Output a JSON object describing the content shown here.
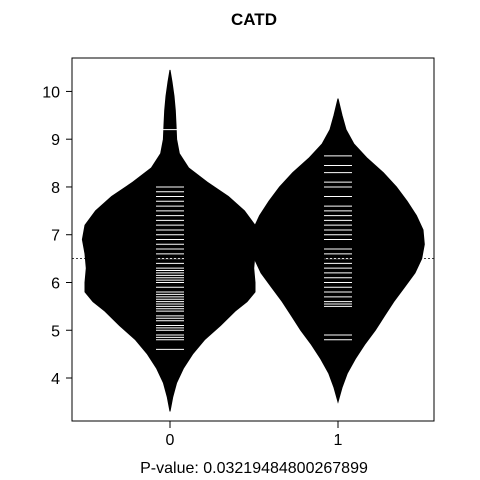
{
  "chart_data": {
    "type": "beanplot",
    "title": "CATD",
    "xlabel_prefix": "P-value: ",
    "xlabel_value": "0.03219484800267899",
    "categories": [
      "0",
      "1"
    ],
    "ylim": [
      3.1,
      10.7
    ],
    "yticks": [
      4,
      5,
      6,
      7,
      8,
      9,
      10
    ],
    "overall_mean": 6.5,
    "beans": [
      {
        "group": "0",
        "min": 3.3,
        "max": 10.45,
        "mean": 6.35,
        "density": [
          [
            3.3,
            0
          ],
          [
            3.6,
            0.02
          ],
          [
            3.9,
            0.05
          ],
          [
            4.2,
            0.1
          ],
          [
            4.5,
            0.17
          ],
          [
            4.8,
            0.26
          ],
          [
            5.1,
            0.38
          ],
          [
            5.4,
            0.49
          ],
          [
            5.6,
            0.58
          ],
          [
            5.8,
            0.64
          ],
          [
            6.0,
            0.64
          ],
          [
            6.3,
            0.63
          ],
          [
            6.6,
            0.64
          ],
          [
            6.9,
            0.66
          ],
          [
            7.2,
            0.64
          ],
          [
            7.5,
            0.56
          ],
          [
            7.8,
            0.44
          ],
          [
            8.1,
            0.28
          ],
          [
            8.4,
            0.14
          ],
          [
            8.7,
            0.07
          ],
          [
            9.0,
            0.05
          ],
          [
            9.3,
            0.045
          ],
          [
            9.6,
            0.04
          ],
          [
            9.9,
            0.03
          ],
          [
            10.2,
            0.015
          ],
          [
            10.45,
            0
          ]
        ],
        "points": [
          4.6,
          4.8,
          4.85,
          4.9,
          5.0,
          5.05,
          5.1,
          5.2,
          5.25,
          5.3,
          5.4,
          5.45,
          5.5,
          5.55,
          5.6,
          5.65,
          5.7,
          5.75,
          5.8,
          5.9,
          6.0,
          6.05,
          6.1,
          6.15,
          6.2,
          6.25,
          6.3,
          6.4,
          6.5,
          6.6,
          6.7,
          6.8,
          6.9,
          7.0,
          7.1,
          7.2,
          7.3,
          7.4,
          7.5,
          7.6,
          7.7,
          7.8,
          7.9,
          8.0,
          9.2
        ]
      },
      {
        "group": "1",
        "min": 3.5,
        "max": 9.85,
        "mean": 6.8,
        "density": [
          [
            3.5,
            0
          ],
          [
            3.8,
            0.03
          ],
          [
            4.1,
            0.07
          ],
          [
            4.4,
            0.13
          ],
          [
            4.7,
            0.2
          ],
          [
            5.0,
            0.28
          ],
          [
            5.3,
            0.35
          ],
          [
            5.6,
            0.42
          ],
          [
            5.9,
            0.5
          ],
          [
            6.2,
            0.58
          ],
          [
            6.5,
            0.63
          ],
          [
            6.8,
            0.65
          ],
          [
            7.1,
            0.64
          ],
          [
            7.4,
            0.59
          ],
          [
            7.7,
            0.52
          ],
          [
            8.0,
            0.44
          ],
          [
            8.3,
            0.34
          ],
          [
            8.6,
            0.22
          ],
          [
            8.9,
            0.12
          ],
          [
            9.2,
            0.06
          ],
          [
            9.5,
            0.03
          ],
          [
            9.85,
            0
          ]
        ],
        "points": [
          4.8,
          4.9,
          5.5,
          5.55,
          5.6,
          5.7,
          5.8,
          5.9,
          6.0,
          6.1,
          6.2,
          6.3,
          6.4,
          6.5,
          6.6,
          6.7,
          6.8,
          6.9,
          7.0,
          7.1,
          7.2,
          7.3,
          7.4,
          7.5,
          7.6,
          7.8,
          8.0,
          8.1,
          8.3,
          8.45,
          8.65
        ]
      }
    ]
  }
}
